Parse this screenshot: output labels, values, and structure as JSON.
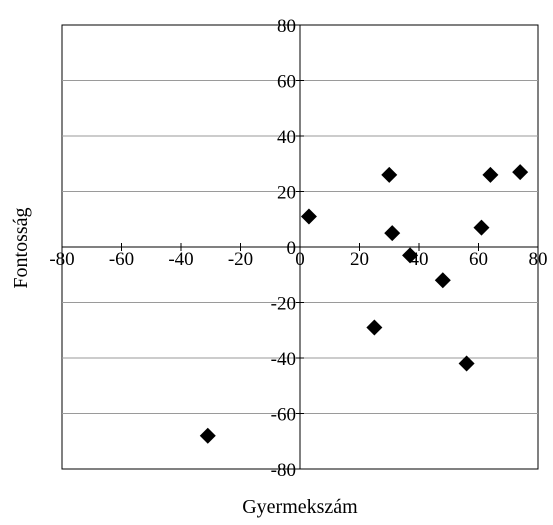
{
  "chart_data": {
    "type": "scatter",
    "title": "",
    "xlabel": "Gyermekszám",
    "ylabel": "Fontosság",
    "xlim": [
      -80,
      80
    ],
    "ylim": [
      -80,
      80
    ],
    "x_ticks": [
      -80,
      -60,
      -40,
      -20,
      0,
      20,
      40,
      60,
      80
    ],
    "y_ticks": [
      80,
      60,
      40,
      20,
      0,
      -20,
      -40,
      -60,
      -80
    ],
    "grid": "horizontal",
    "marker": "diamond",
    "marker_color": "#000000",
    "series": [
      {
        "points": [
          {
            "x": 3,
            "y": 11
          },
          {
            "x": 30,
            "y": 26
          },
          {
            "x": 31,
            "y": 5
          },
          {
            "x": 37,
            "y": -3
          },
          {
            "x": 25,
            "y": -29
          },
          {
            "x": 48,
            "y": -12
          },
          {
            "x": 56,
            "y": -42
          },
          {
            "x": 61,
            "y": 7
          },
          {
            "x": 64,
            "y": 26
          },
          {
            "x": 74,
            "y": 27
          },
          {
            "x": -31,
            "y": -68
          }
        ]
      }
    ]
  }
}
